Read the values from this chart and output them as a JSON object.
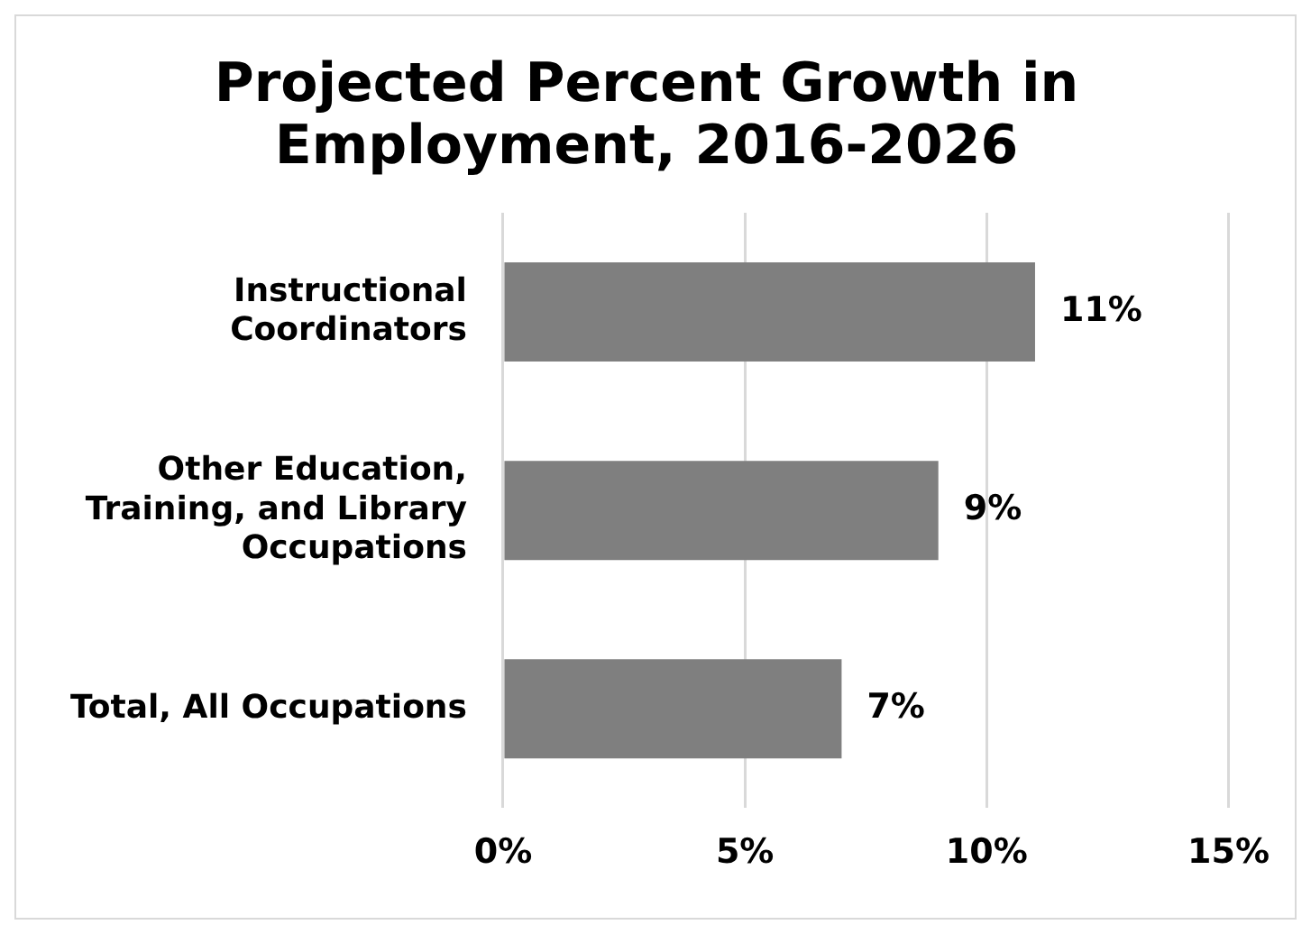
{
  "chart_data": {
    "type": "bar",
    "orientation": "horizontal",
    "title": "Projected Percent Growth in Employment, 2016-2026",
    "categories": [
      "Instructional Coordinators",
      "Other Education, Training, and Library Occupations",
      "Total, All Occupations"
    ],
    "values": [
      11,
      9,
      7
    ],
    "color": "#7f7f7f",
    "value_labels": [
      "11%",
      "9%",
      "7%"
    ],
    "xlim": [
      0,
      15
    ],
    "xticks": [
      {
        "value": 0,
        "label": "0%"
      },
      {
        "value": 5,
        "label": "5%"
      },
      {
        "value": 10,
        "label": "10%"
      },
      {
        "value": 15,
        "label": "15%"
      }
    ],
    "grid": "x",
    "legend": false
  }
}
